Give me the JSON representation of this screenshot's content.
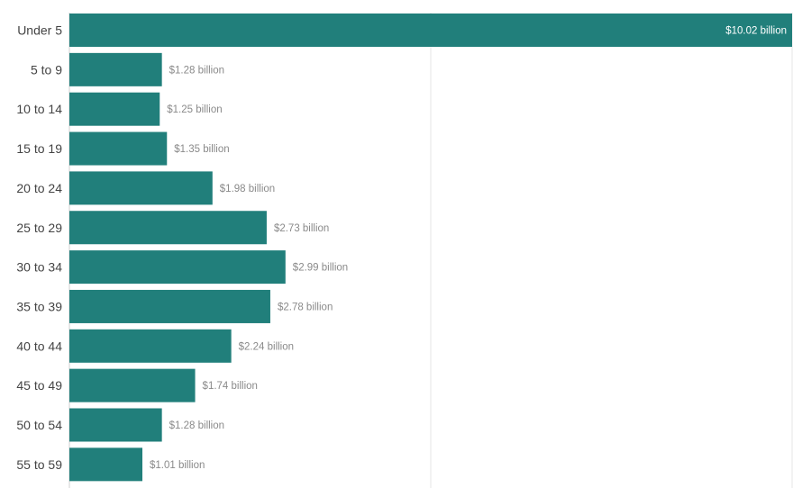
{
  "chart_data": {
    "type": "bar",
    "orientation": "horizontal",
    "categories": [
      "Under 5",
      "5 to 9",
      "10 to 14",
      "15 to 19",
      "20 to 24",
      "25 to 29",
      "30 to 34",
      "35 to 39",
      "40 to 44",
      "45 to 49",
      "50 to 54",
      "55 to 59"
    ],
    "values": [
      10.02,
      1.28,
      1.25,
      1.35,
      1.98,
      2.73,
      2.99,
      2.78,
      2.24,
      1.74,
      1.28,
      1.01
    ],
    "value_labels": [
      "$10.02 billion",
      "$1.28 billion",
      "$1.25 billion",
      "$1.35 billion",
      "$1.98 billion",
      "$2.73 billion",
      "$2.99 billion",
      "$2.78 billion",
      "$2.24 billion",
      "$1.74 billion",
      "$1.28 billion",
      "$1.01 billion"
    ],
    "title": "",
    "xlabel": "",
    "ylabel": "",
    "xlim": [
      0,
      10
    ],
    "grid": true,
    "legend": "none",
    "bar_color": "#217f7b"
  }
}
